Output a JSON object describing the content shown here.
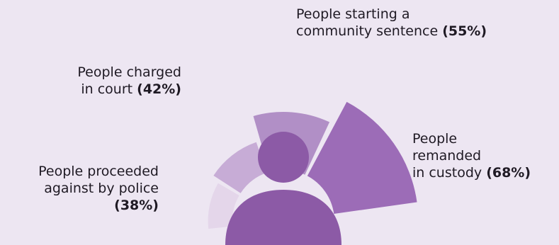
{
  "chart_data": {
    "type": "pie",
    "categories": [
      "People proceeded against by police",
      "People charged in court",
      "People starting a community sentence",
      "People remanded in custody"
    ],
    "values": [
      38,
      42,
      55,
      68
    ],
    "unit": "%",
    "colors": [
      "#e4d6ea",
      "#c7acd6",
      "#b18fc6",
      "#9c6cb7"
    ],
    "center_icon": "person-silhouette-icon",
    "center_color": "#8c5aa6",
    "labels": [
      {
        "lines": [
          "People proceeded",
          "against by police"
        ],
        "pct": "(38%)"
      },
      {
        "lines": [
          "People charged",
          "in court"
        ],
        "pct": "(42%)"
      },
      {
        "lines": [
          "People starting a",
          "community sentence"
        ],
        "pct": "(55%)"
      },
      {
        "lines": [
          "People",
          "remanded",
          "in custody"
        ],
        "pct": "(68%)"
      }
    ]
  }
}
